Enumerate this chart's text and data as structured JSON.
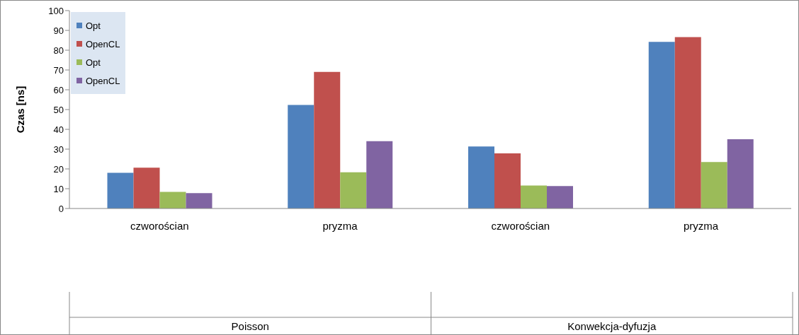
{
  "chart_data": {
    "type": "bar",
    "ylabel": "Czas [ns]",
    "categories": [
      "czworościan",
      "pryzma",
      "czworościan",
      "pryzma"
    ],
    "annotations": [
      "Poisson",
      "Konwekcja-dyfuzja"
    ],
    "series": [
      {
        "name": "Opt",
        "color": "#4f81bd",
        "values": [
          18,
          52.3,
          31.3,
          84.2
        ]
      },
      {
        "name": "OpenCL",
        "color": "#c0504d",
        "values": [
          20.6,
          69,
          27.9,
          86.6
        ]
      },
      {
        "name": "Opt",
        "color": "#9bbb59",
        "values": [
          8.4,
          18.3,
          11.6,
          23.5
        ]
      },
      {
        "name": "OpenCL",
        "color": "#8064a2",
        "values": [
          7.8,
          34,
          11.3,
          35
        ]
      }
    ],
    "ylim": [
      0,
      100
    ],
    "yticks": [
      0,
      10,
      20,
      30,
      40,
      50,
      60,
      70,
      80,
      90,
      100
    ],
    "grid": false,
    "legend": "top left"
  }
}
